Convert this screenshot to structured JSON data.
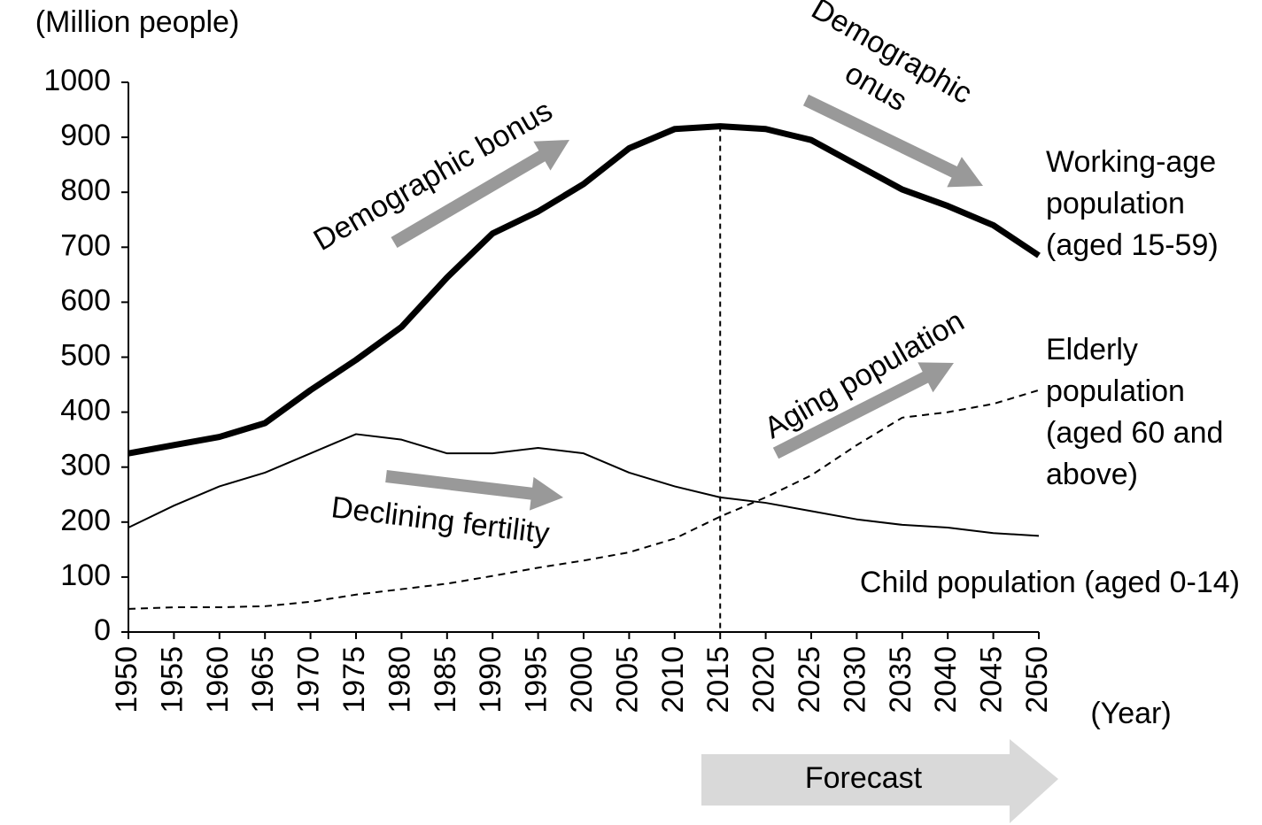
{
  "chart_data": {
    "type": "line",
    "y_axis_label": "(Million people)",
    "x_axis_label": "(Year)",
    "x": [
      1950,
      1955,
      1960,
      1965,
      1970,
      1975,
      1980,
      1985,
      1990,
      1995,
      2000,
      2005,
      2010,
      2015,
      2020,
      2025,
      2030,
      2035,
      2040,
      2045,
      2050
    ],
    "xlim": [
      1950,
      2050
    ],
    "xticks": [
      1950,
      1955,
      1960,
      1965,
      1970,
      1975,
      1980,
      1985,
      1990,
      1995,
      2000,
      2005,
      2010,
      2015,
      2020,
      2025,
      2030,
      2035,
      2040,
      2045,
      2050
    ],
    "ylim": [
      0,
      1000
    ],
    "yticks": [
      0,
      100,
      200,
      300,
      400,
      500,
      600,
      700,
      800,
      900,
      1000
    ],
    "series": [
      {
        "name": "Working-age population (aged 15-59)",
        "color": "#000000",
        "values": [
          325,
          340,
          355,
          380,
          440,
          495,
          555,
          645,
          725,
          765,
          815,
          880,
          915,
          920,
          915,
          895,
          850,
          805,
          775,
          740,
          685
        ]
      },
      {
        "name": "Child population (aged 0-14)",
        "color": "#000000",
        "values": [
          190,
          230,
          265,
          290,
          325,
          360,
          350,
          325,
          325,
          335,
          325,
          290,
          265,
          245,
          235,
          220,
          205,
          195,
          190,
          180,
          175
        ]
      },
      {
        "name": "Elderly population (aged 60 and above)",
        "color": "#000000",
        "values": [
          42,
          45,
          45,
          47,
          55,
          68,
          78,
          88,
          102,
          117,
          130,
          145,
          170,
          210,
          245,
          285,
          340,
          390,
          400,
          415,
          440
        ]
      }
    ],
    "divider_x": 2015,
    "annotations": [
      "Demographic bonus",
      "Demographic onus",
      "Aging population",
      "Declining fertility",
      "Forecast"
    ]
  }
}
